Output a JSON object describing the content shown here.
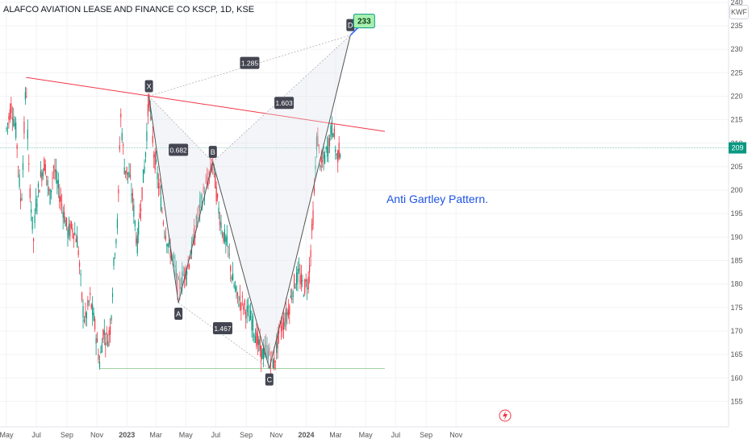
{
  "header": {
    "title": "ALAFCO AVIATION LEASE AND FINANCE CO KSCP, 1D, KSE",
    "currency": "KWF"
  },
  "chart_data": {
    "type": "candlestick",
    "annotation": "Anti Gartley Pattern.",
    "y_ticks": [
      155,
      160,
      165,
      170,
      175,
      180,
      185,
      190,
      195,
      200,
      205,
      210,
      215,
      220,
      225,
      230,
      235,
      240
    ],
    "ylim": [
      152.5,
      241
    ],
    "x_ticks": [
      {
        "label": "May",
        "day": 0
      },
      {
        "label": "Jul",
        "day": 61
      },
      {
        "label": "Sep",
        "day": 123
      },
      {
        "label": "Nov",
        "day": 184
      },
      {
        "label": "2023",
        "day": 245
      },
      {
        "label": "Mar",
        "day": 304
      },
      {
        "label": "May",
        "day": 365
      },
      {
        "label": "Jul",
        "day": 426
      },
      {
        "label": "Sep",
        "day": 488
      },
      {
        "label": "Nov",
        "day": 549
      },
      {
        "label": "2024",
        "day": 610
      },
      {
        "label": "Mar",
        "day": 670
      },
      {
        "label": "May",
        "day": 731
      },
      {
        "label": "Jul",
        "day": 792
      },
      {
        "label": "Sep",
        "day": 854
      },
      {
        "label": "Nov",
        "day": 915
      }
    ],
    "last_price": "209",
    "target": "233",
    "pattern_points": [
      {
        "label": "X",
        "day": 290,
        "price": 220
      },
      {
        "label": "A",
        "day": 350,
        "price": 176
      },
      {
        "label": "B",
        "day": 420,
        "price": 206
      },
      {
        "label": "C",
        "day": 535,
        "price": 162
      },
      {
        "label": "D",
        "day": 700,
        "price": 233
      }
    ],
    "ratios": [
      {
        "label": "0.682",
        "day": 350,
        "price": 208.5
      },
      {
        "label": "1.285",
        "day": 495,
        "price": 227
      },
      {
        "label": "1.603",
        "day": 565,
        "price": 218.5
      },
      {
        "label": "1.467",
        "day": 440,
        "price": 170.5
      }
    ],
    "trend_line": [
      {
        "day": 40,
        "price": 224
      },
      {
        "day": 770,
        "price": 212.5
      }
    ],
    "support_line": [
      {
        "day": 190,
        "price": 162
      },
      {
        "day": 770,
        "price": 162
      }
    ],
    "price_points": [
      [
        0,
        213
      ],
      [
        10,
        218
      ],
      [
        20,
        212
      ],
      [
        30,
        196
      ],
      [
        40,
        224
      ],
      [
        45,
        205
      ],
      [
        55,
        189
      ],
      [
        60,
        197
      ],
      [
        70,
        203
      ],
      [
        78,
        206
      ],
      [
        88,
        198
      ],
      [
        96,
        205
      ],
      [
        106,
        200
      ],
      [
        115,
        196
      ],
      [
        125,
        191
      ],
      [
        135,
        192
      ],
      [
        145,
        189
      ],
      [
        155,
        175
      ],
      [
        160,
        172
      ],
      [
        170,
        177
      ],
      [
        180,
        171
      ],
      [
        190,
        163
      ],
      [
        197,
        170
      ],
      [
        205,
        168
      ],
      [
        212,
        171
      ],
      [
        220,
        187
      ],
      [
        227,
        194
      ],
      [
        232,
        217
      ],
      [
        240,
        205
      ],
      [
        250,
        203
      ],
      [
        258,
        197
      ],
      [
        266,
        188
      ],
      [
        274,
        198
      ],
      [
        282,
        206
      ],
      [
        290,
        220
      ],
      [
        300,
        208
      ],
      [
        310,
        201
      ],
      [
        320,
        193
      ],
      [
        330,
        188
      ],
      [
        340,
        185
      ],
      [
        350,
        179
      ],
      [
        360,
        182
      ],
      [
        370,
        184
      ],
      [
        380,
        189
      ],
      [
        390,
        195
      ],
      [
        400,
        199
      ],
      [
        410,
        202
      ],
      [
        420,
        206
      ],
      [
        430,
        197
      ],
      [
        440,
        191
      ],
      [
        450,
        188
      ],
      [
        460,
        181
      ],
      [
        470,
        177
      ],
      [
        480,
        176
      ],
      [
        490,
        174
      ],
      [
        500,
        172
      ],
      [
        510,
        168
      ],
      [
        520,
        165
      ],
      [
        530,
        166
      ],
      [
        535,
        165
      ],
      [
        545,
        163
      ],
      [
        555,
        170
      ],
      [
        565,
        172
      ],
      [
        575,
        175
      ],
      [
        585,
        180
      ],
      [
        595,
        182
      ],
      [
        605,
        179
      ],
      [
        615,
        181
      ],
      [
        625,
        196
      ],
      [
        632,
        212
      ],
      [
        640,
        205
      ],
      [
        648,
        207
      ],
      [
        656,
        210
      ],
      [
        664,
        214
      ],
      [
        672,
        207
      ],
      [
        680,
        209
      ]
    ]
  }
}
